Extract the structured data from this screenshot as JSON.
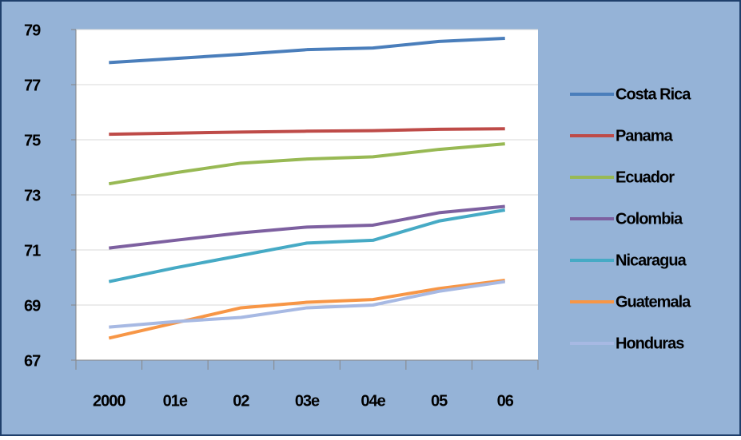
{
  "chart_data": {
    "type": "line",
    "categories": [
      "2000",
      "01e",
      "02",
      "03e",
      "04e",
      "05",
      "06"
    ],
    "series": [
      {
        "name": "Costa Rica",
        "color": "#4a7ebb",
        "values": [
          77.8,
          77.95,
          78.1,
          78.27,
          78.33,
          78.57,
          78.68
        ]
      },
      {
        "name": "Panama",
        "color": "#be4b48",
        "values": [
          75.2,
          75.24,
          75.28,
          75.31,
          75.33,
          75.38,
          75.4
        ]
      },
      {
        "name": "Ecuador",
        "color": "#98b954",
        "values": [
          73.4,
          73.8,
          74.15,
          74.3,
          74.38,
          74.65,
          74.85
        ]
      },
      {
        "name": "Colombia",
        "color": "#7d60a0",
        "values": [
          71.07,
          71.35,
          71.62,
          71.83,
          71.9,
          72.35,
          72.58
        ]
      },
      {
        "name": "Nicaragua",
        "color": "#46aac5",
        "values": [
          69.85,
          70.35,
          70.8,
          71.25,
          71.35,
          72.05,
          72.45
        ]
      },
      {
        "name": "Guatemala",
        "color": "#f79646",
        "values": [
          67.8,
          68.35,
          68.9,
          69.1,
          69.2,
          69.6,
          69.9
        ]
      },
      {
        "name": "Honduras",
        "color": "#a7b9e3",
        "values": [
          68.2,
          68.4,
          68.55,
          68.9,
          69.0,
          69.5,
          69.85
        ]
      }
    ],
    "ylim": [
      67,
      79
    ],
    "yticks": [
      67,
      69,
      71,
      73,
      75,
      77,
      79
    ],
    "grid": true,
    "legend": "right"
  }
}
